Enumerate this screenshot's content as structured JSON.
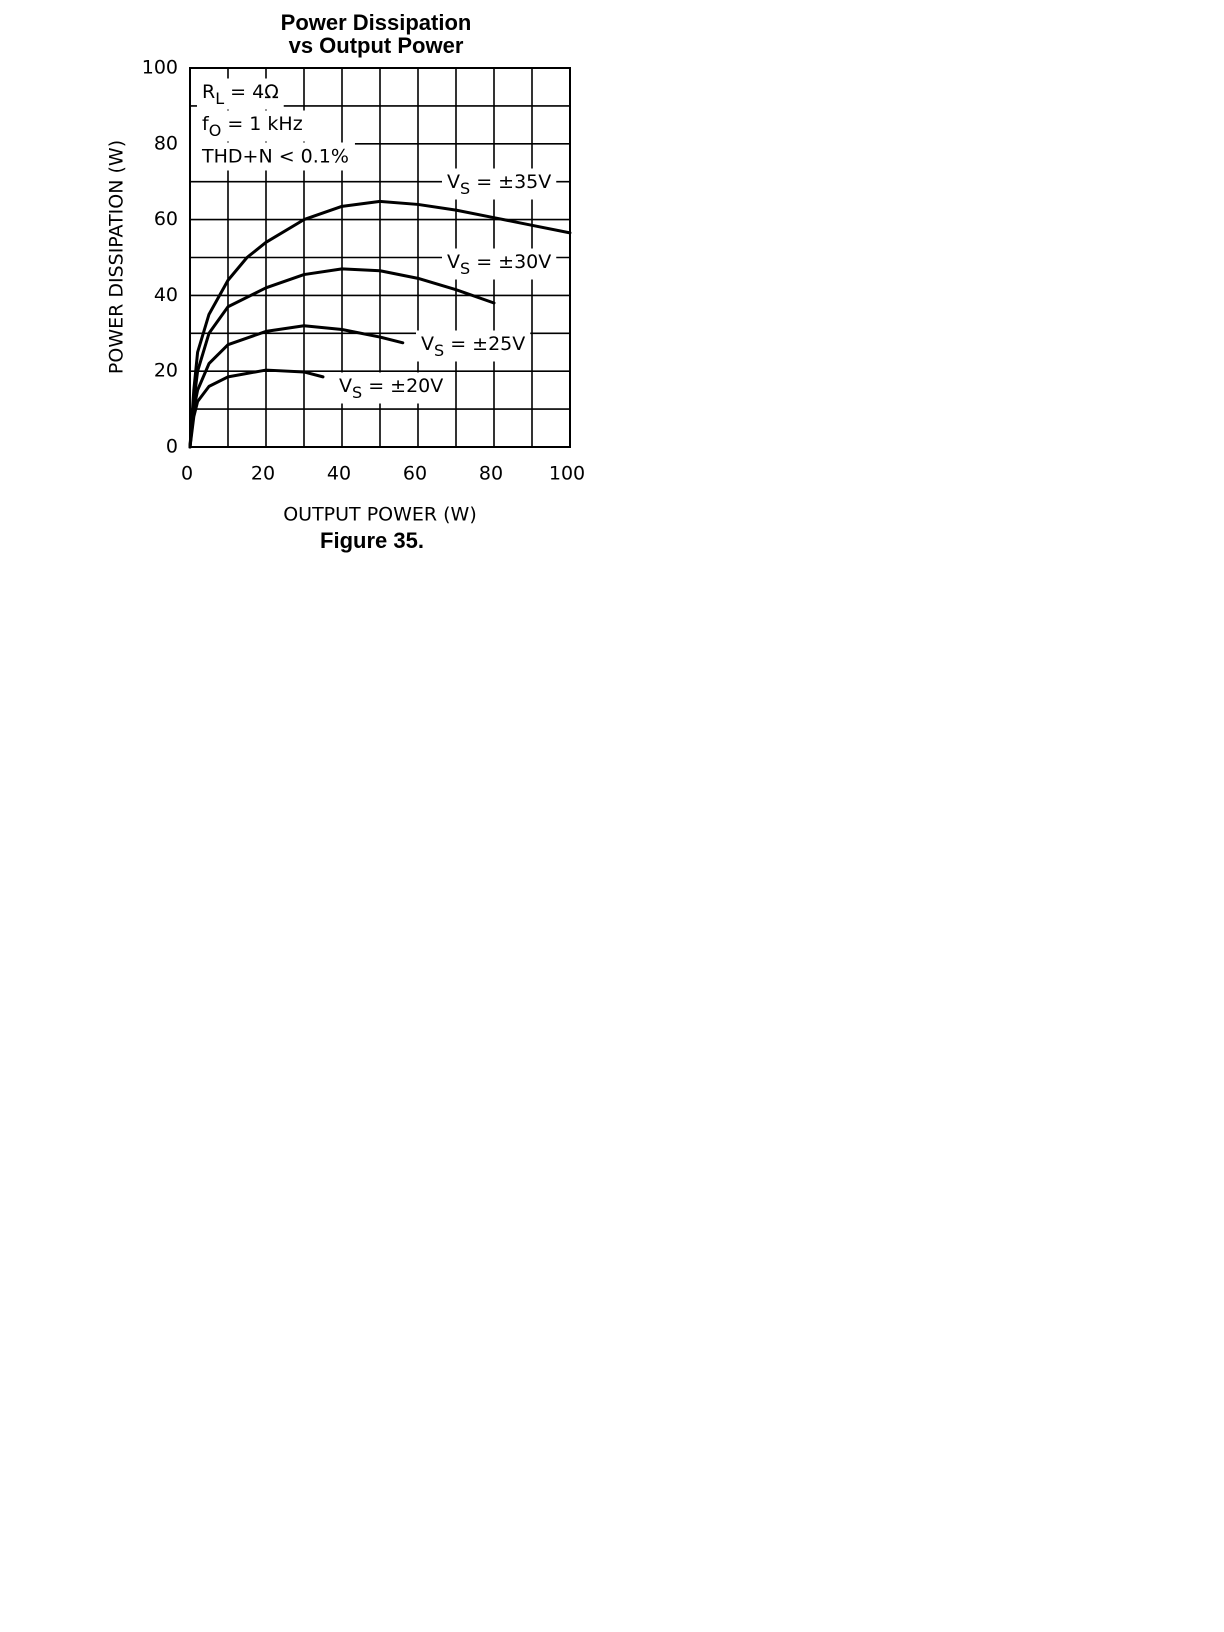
{
  "chart_data": {
    "type": "line",
    "title": [
      "Power Dissipation",
      "vs Output Power"
    ],
    "caption": "Figure 35.",
    "xlabel": "OUTPUT POWER (W)",
    "ylabel": "POWER DISSIPATION (W)",
    "annotations": [
      "RL = 4Ω",
      "fO = 1 kHz",
      "THD+N < 0.1%"
    ],
    "xlim": [
      0,
      100
    ],
    "ylim": [
      0,
      100
    ],
    "xticks": [
      0,
      20,
      40,
      60,
      80,
      100
    ],
    "yticks": [
      0,
      20,
      40,
      60,
      80,
      100
    ],
    "x_minor_ticks": [
      10,
      30,
      50,
      70,
      90
    ],
    "y_minor_ticks": [
      10,
      30,
      50,
      70,
      90
    ],
    "grid": true,
    "series": [
      {
        "name": "VS = ±35V",
        "color": "#000000",
        "x": [
          0,
          1,
          2,
          5,
          10,
          15,
          20,
          30,
          40,
          50,
          60,
          70,
          80,
          90,
          100
        ],
        "values": [
          0,
          15,
          25,
          35,
          44,
          50,
          54,
          60,
          63.5,
          64.8,
          64,
          62.5,
          60.5,
          58.5,
          56.5
        ]
      },
      {
        "name": "VS = ±30V",
        "color": "#000000",
        "x": [
          0,
          1,
          2,
          5,
          10,
          20,
          30,
          40,
          50,
          60,
          70,
          80
        ],
        "values": [
          0,
          12,
          20,
          30,
          37,
          42,
          45.5,
          47,
          46.5,
          44.5,
          41.5,
          38
        ]
      },
      {
        "name": "VS = ±25V",
        "color": "#000000",
        "x": [
          0,
          1,
          2,
          5,
          10,
          20,
          30,
          40,
          50,
          56
        ],
        "values": [
          0,
          10,
          15,
          22,
          27,
          30.5,
          32,
          31,
          29,
          27.5
        ]
      },
      {
        "name": "VS = ±20V",
        "color": "#000000",
        "x": [
          0,
          1,
          2,
          5,
          10,
          20,
          30,
          35
        ],
        "values": [
          0,
          8,
          12,
          16,
          18.5,
          20.3,
          19.8,
          18.5
        ]
      }
    ]
  }
}
